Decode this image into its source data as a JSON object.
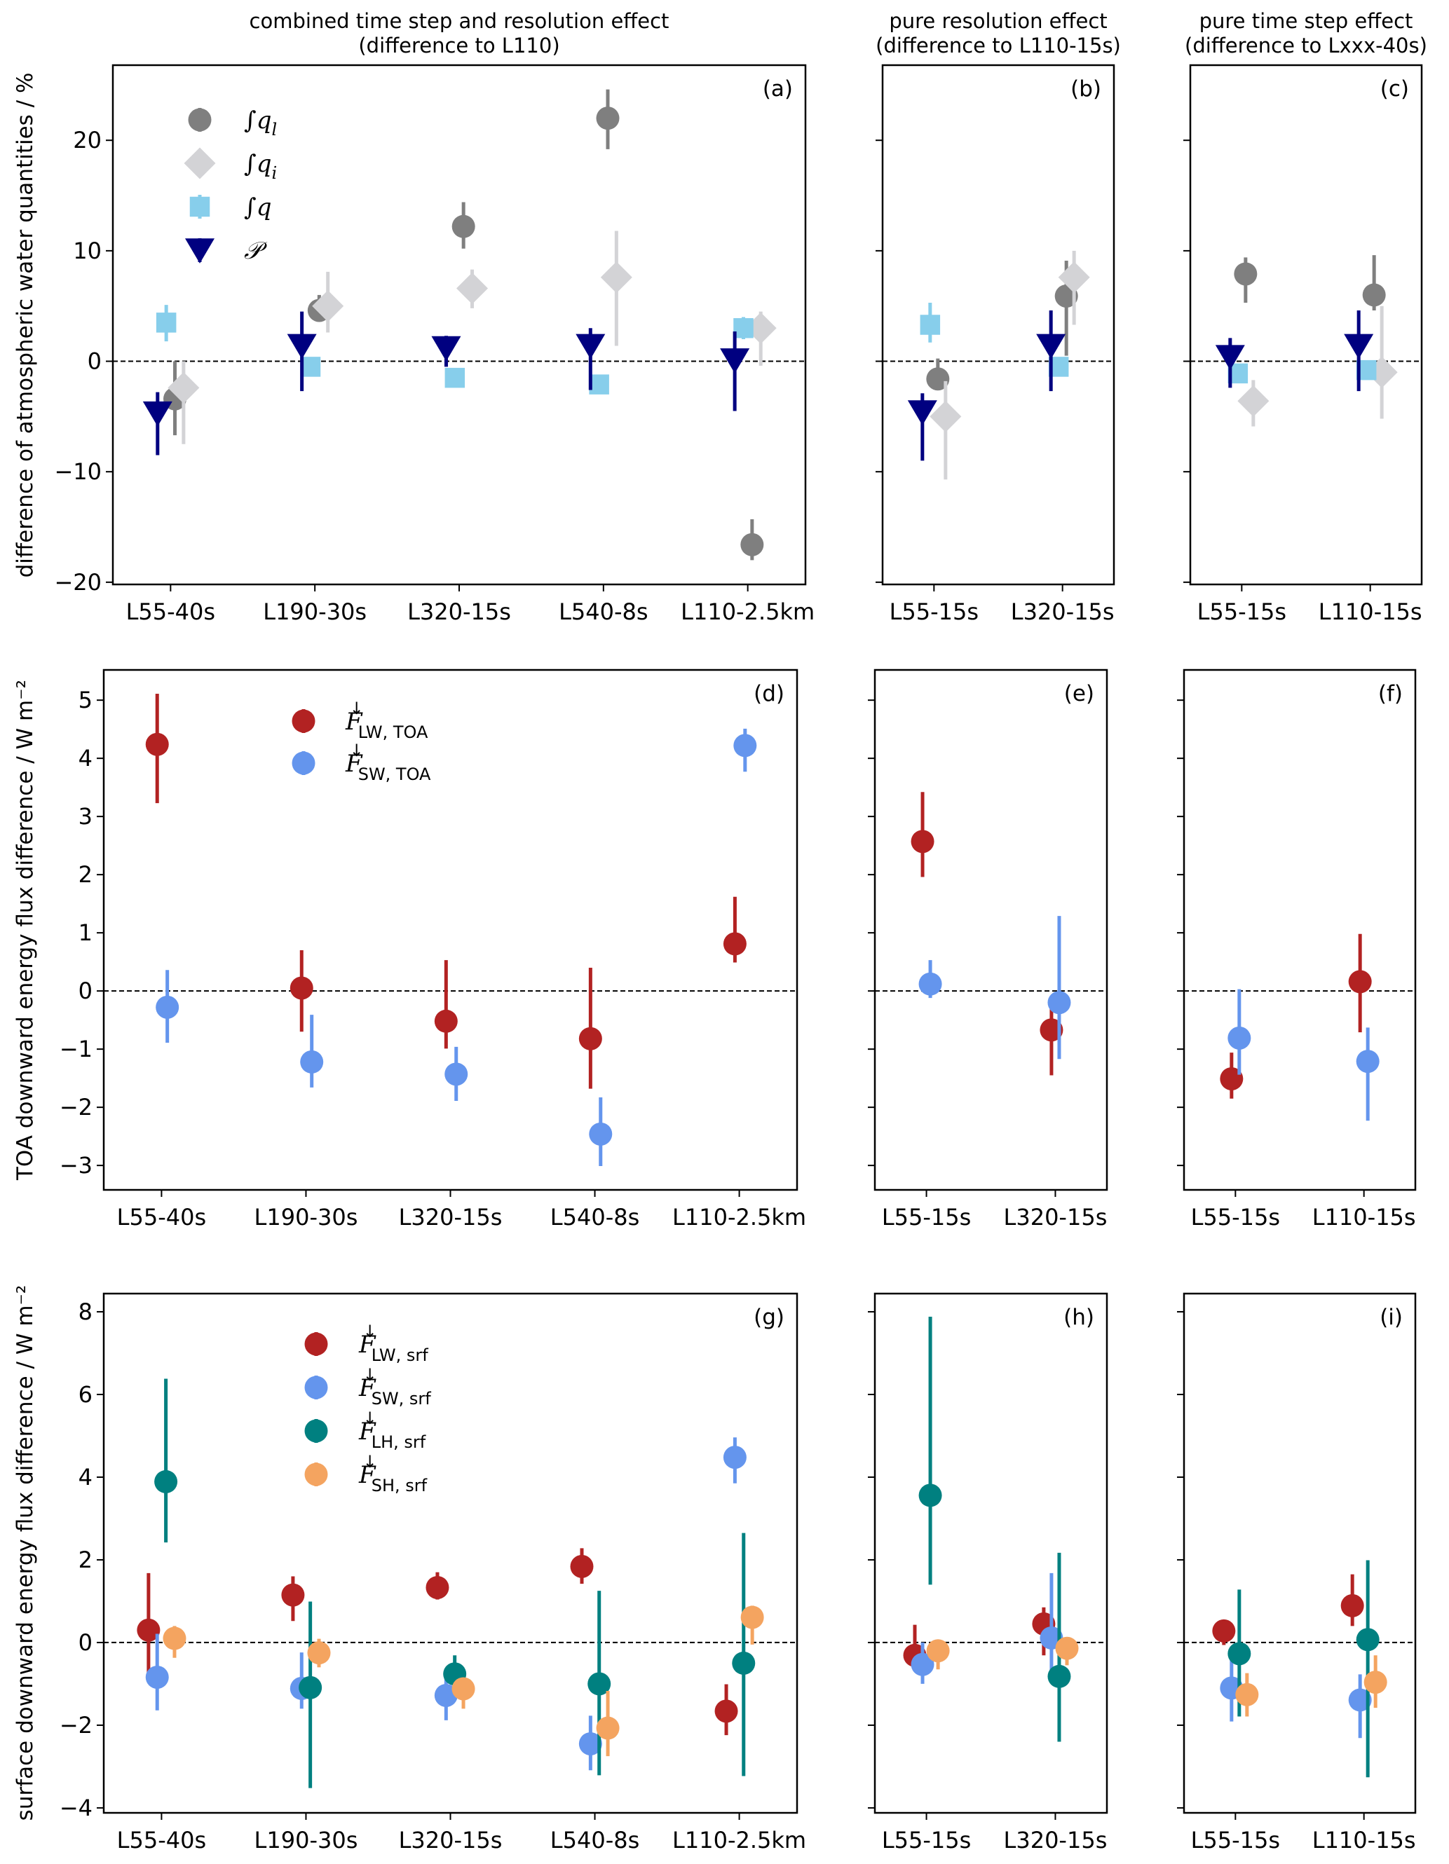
{
  "chart_data": [
    {
      "panel": "a",
      "type": "scatter",
      "panel_label": "(a)",
      "title": [
        "combined time step and resolution effect",
        "(difference to L110)"
      ],
      "ylabel": "difference of atmospheric water quantities / %",
      "categories": [
        "L55-40s",
        "L190-30s",
        "L320-15s",
        "L540-8s",
        "L110-2.5km"
      ],
      "ylim": [
        -20.2,
        26.8
      ],
      "yticks": [
        -20,
        -10,
        0,
        10,
        20
      ],
      "ytick_labels": [
        "−20",
        "−10",
        "0",
        "10",
        "20"
      ],
      "show_ytick_labels": true,
      "zero_line": true,
      "legend": "upper-left",
      "series": [
        {
          "name": "∫q_l",
          "label_main": "∫q",
          "label_sub": "l",
          "color": "#7f7f7f",
          "marker": "circle",
          "offset": 0.03,
          "values": [
            -3.4,
            4.6,
            12.2,
            22.0,
            -16.6
          ],
          "err_low": [
            -6.7,
            3.6,
            10.2,
            19.2,
            -18.0
          ],
          "err_high": [
            0.0,
            6.0,
            14.4,
            24.6,
            -14.3
          ]
        },
        {
          "name": "∫q_i",
          "label_main": "∫q",
          "label_sub": "i",
          "color": "#d3d3d6",
          "marker": "diamond",
          "offset": 0.09,
          "values": [
            -2.4,
            5.0,
            6.6,
            7.6,
            3.0
          ],
          "err_low": [
            -7.5,
            2.6,
            4.8,
            1.4,
            -0.4
          ],
          "err_high": [
            0.0,
            8.1,
            8.3,
            11.8,
            4.5
          ]
        },
        {
          "name": "∫q",
          "label_main": "∫q",
          "label_sub": "",
          "color": "#87ceeb",
          "marker": "square",
          "offset": -0.03,
          "values": [
            3.5,
            -0.5,
            -1.5,
            -2.1,
            3.0
          ],
          "err_low": [
            1.8,
            -0.9,
            -1.8,
            -2.4,
            2.0
          ],
          "err_high": [
            5.1,
            -0.1,
            -1.2,
            -1.8,
            4.0
          ]
        },
        {
          "name": "P",
          "label_main": "𝒫",
          "label_sub": "",
          "color": "#000080",
          "marker": "triangle-down",
          "offset": -0.09,
          "values": [
            -4.7,
            1.4,
            1.2,
            1.4,
            0.1
          ],
          "err_low": [
            -8.5,
            -2.7,
            -0.5,
            -2.6,
            -4.5
          ],
          "err_high": [
            -2.8,
            4.5,
            2.3,
            3.0,
            2.7
          ]
        }
      ]
    },
    {
      "panel": "b",
      "type": "scatter",
      "panel_label": "(b)",
      "title": [
        "pure resolution effect",
        "(difference to L110-15s)"
      ],
      "categories": [
        "L55-15s",
        "L320-15s"
      ],
      "ylim": [
        -20.2,
        26.8
      ],
      "yticks": [
        -20,
        -10,
        0,
        10,
        20
      ],
      "show_ytick_labels": false,
      "zero_line": true,
      "series": [
        {
          "name": "∫q_l",
          "color": "#7f7f7f",
          "marker": "circle",
          "offset": 0.03,
          "values": [
            -1.6,
            5.9
          ],
          "err_low": [
            -2.5,
            0.5
          ],
          "err_high": [
            0.25,
            9.1
          ]
        },
        {
          "name": "∫q_i",
          "color": "#d3d3d6",
          "marker": "diamond",
          "offset": 0.09,
          "values": [
            -5.0,
            7.6
          ],
          "err_low": [
            -10.7,
            3.3
          ],
          "err_high": [
            -1.8,
            10.0
          ]
        },
        {
          "name": "∫q",
          "color": "#87ceeb",
          "marker": "square",
          "offset": -0.03,
          "values": [
            3.3,
            -0.5
          ],
          "err_low": [
            1.7,
            -0.8
          ],
          "err_high": [
            5.3,
            -0.2
          ]
        },
        {
          "name": "P",
          "color": "#000080",
          "marker": "triangle-down",
          "offset": -0.09,
          "values": [
            -4.6,
            1.4
          ],
          "err_low": [
            -9.0,
            -2.7
          ],
          "err_high": [
            -2.9,
            4.6
          ]
        }
      ]
    },
    {
      "panel": "c",
      "type": "scatter",
      "panel_label": "(c)",
      "title": [
        "pure time step effect",
        "(difference to Lxxx-40s)"
      ],
      "categories": [
        "L55-15s",
        "L110-15s"
      ],
      "ylim": [
        -20.2,
        26.8
      ],
      "yticks": [
        -20,
        -10,
        0,
        10,
        20
      ],
      "show_ytick_labels": false,
      "zero_line": true,
      "series": [
        {
          "name": "∫q_l",
          "color": "#7f7f7f",
          "marker": "circle",
          "offset": 0.03,
          "values": [
            7.9,
            6.0
          ],
          "err_low": [
            5.3,
            4.6
          ],
          "err_high": [
            9.4,
            9.6
          ]
        },
        {
          "name": "∫q_i",
          "color": "#d3d3d6",
          "marker": "diamond",
          "offset": 0.09,
          "values": [
            -3.6,
            -1.0
          ],
          "err_low": [
            -5.9,
            -5.2
          ],
          "err_high": [
            -1.7,
            5.0
          ]
        },
        {
          "name": "∫q",
          "color": "#87ceeb",
          "marker": "square",
          "offset": -0.03,
          "values": [
            -1.1,
            -0.8
          ],
          "err_low": [
            -1.4,
            -1.1
          ],
          "err_high": [
            -0.8,
            -0.5
          ]
        },
        {
          "name": "P",
          "color": "#000080",
          "marker": "triangle-down",
          "offset": -0.09,
          "values": [
            0.4,
            1.4
          ],
          "err_low": [
            -2.4,
            -2.7
          ],
          "err_high": [
            2.1,
            4.6
          ]
        }
      ]
    },
    {
      "panel": "d",
      "type": "scatter",
      "panel_label": "(d)",
      "ylabel": "TOA downward energy flux difference / W m⁻²",
      "categories": [
        "L55-40s",
        "L190-30s",
        "L320-15s",
        "L540-8s",
        "L110-2.5km"
      ],
      "ylim": [
        -3.42,
        5.52
      ],
      "yticks": [
        -3,
        -2,
        -1,
        0,
        1,
        2,
        3,
        4,
        5
      ],
      "ytick_labels": [
        "−3",
        "−2",
        "−1",
        "0",
        "1",
        "2",
        "3",
        "4",
        "5"
      ],
      "show_ytick_labels": true,
      "zero_line": true,
      "legend": "upper-left",
      "series": [
        {
          "name": "F_LW,TOA",
          "label_main": "F",
          "label_sub": "LW, TOA",
          "color": "#b22222",
          "marker": "circle",
          "offset": -0.03,
          "values": [
            4.24,
            0.05,
            -0.52,
            -0.82,
            0.81
          ],
          "err_low": [
            3.23,
            -0.7,
            -0.99,
            -1.68,
            0.49
          ],
          "err_high": [
            5.11,
            0.7,
            0.53,
            0.4,
            1.62
          ]
        },
        {
          "name": "F_SW,TOA",
          "label_main": "F",
          "label_sub": "SW, TOA",
          "color": "#6495ed",
          "marker": "circle",
          "offset": 0.04,
          "values": [
            -0.28,
            -1.22,
            -1.43,
            -2.46,
            4.22
          ],
          "err_low": [
            -0.89,
            -1.66,
            -1.89,
            -3.01,
            3.77
          ],
          "err_high": [
            0.36,
            -0.41,
            -0.96,
            -1.83,
            4.51
          ]
        }
      ]
    },
    {
      "panel": "e",
      "type": "scatter",
      "panel_label": "(e)",
      "categories": [
        "L55-15s",
        "L320-15s"
      ],
      "ylim": [
        -3.42,
        5.52
      ],
      "yticks": [
        -3,
        -2,
        -1,
        0,
        1,
        2,
        3,
        4,
        5
      ],
      "show_ytick_labels": false,
      "zero_line": true,
      "series": [
        {
          "name": "F_LW,TOA",
          "color": "#b22222",
          "marker": "circle",
          "offset": -0.03,
          "values": [
            2.57,
            -0.67
          ],
          "err_low": [
            1.96,
            -1.45
          ],
          "err_high": [
            3.42,
            -0.24
          ]
        },
        {
          "name": "F_SW,TOA",
          "color": "#6495ed",
          "marker": "circle",
          "offset": 0.03,
          "values": [
            0.12,
            -0.2
          ],
          "err_low": [
            -0.12,
            -1.17
          ],
          "err_high": [
            0.53,
            1.29
          ]
        }
      ]
    },
    {
      "panel": "f",
      "type": "scatter",
      "panel_label": "(f)",
      "categories": [
        "L55-15s",
        "L110-15s"
      ],
      "ylim": [
        -3.42,
        5.52
      ],
      "yticks": [
        -3,
        -2,
        -1,
        0,
        1,
        2,
        3,
        4,
        5
      ],
      "show_ytick_labels": false,
      "zero_line": true,
      "series": [
        {
          "name": "F_LW,TOA",
          "color": "#b22222",
          "marker": "circle",
          "offset": -0.03,
          "values": [
            -1.51,
            0.16
          ],
          "err_low": [
            -1.85,
            -0.71
          ],
          "err_high": [
            -1.06,
            0.98
          ]
        },
        {
          "name": "F_SW,TOA",
          "color": "#6495ed",
          "marker": "circle",
          "offset": 0.03,
          "values": [
            -0.81,
            -1.21
          ],
          "err_low": [
            -1.44,
            -2.23
          ],
          "err_high": [
            0.03,
            -0.63
          ]
        }
      ]
    },
    {
      "panel": "g",
      "type": "scatter",
      "panel_label": "(g)",
      "ylabel": "surface downward energy flux difference / W m⁻²",
      "categories": [
        "L55-40s",
        "L190-30s",
        "L320-15s",
        "L540-8s",
        "L110-2.5km"
      ],
      "ylim": [
        -4.12,
        8.44
      ],
      "yticks": [
        -4,
        -2,
        0,
        2,
        4,
        6,
        8
      ],
      "ytick_labels": [
        "−4",
        "−2",
        "0",
        "2",
        "4",
        "6",
        "8"
      ],
      "show_ytick_labels": true,
      "zero_line": true,
      "legend": "upper-left",
      "series": [
        {
          "name": "F_LW,srf",
          "label_main": "F",
          "label_sub": "LW, srf",
          "color": "#b22222",
          "marker": "circle",
          "offset": -0.09,
          "values": [
            0.3,
            1.15,
            1.33,
            1.84,
            -1.66
          ],
          "err_low": [
            -0.81,
            0.52,
            1.04,
            1.42,
            -2.24
          ],
          "err_high": [
            1.68,
            1.6,
            1.7,
            2.28,
            -1.01
          ]
        },
        {
          "name": "F_SW,srf",
          "label_main": "F",
          "label_sub": "SW, srf",
          "color": "#6495ed",
          "marker": "circle",
          "offset": -0.03,
          "values": [
            -0.84,
            -1.11,
            -1.28,
            -2.45,
            4.48
          ],
          "err_low": [
            -1.64,
            -1.6,
            -1.88,
            -3.09,
            3.85
          ],
          "err_high": [
            0.21,
            -0.24,
            -0.65,
            -1.77,
            4.96
          ]
        },
        {
          "name": "F_LH,srf",
          "label_main": "F",
          "label_sub": "LH, srf",
          "color": "#008080",
          "marker": "circle",
          "offset": 0.03,
          "values": [
            3.89,
            -1.09,
            -0.76,
            -1.0,
            -0.5
          ],
          "err_low": [
            2.42,
            -3.52,
            -1.22,
            -3.21,
            -3.23
          ],
          "err_high": [
            6.38,
            0.99,
            -0.31,
            1.25,
            2.65
          ]
        },
        {
          "name": "F_SH,srf",
          "label_main": "F",
          "label_sub": "SH, srf",
          "color": "#f4a460",
          "marker": "circle",
          "offset": 0.09,
          "values": [
            0.1,
            -0.25,
            -1.12,
            -2.07,
            0.61
          ],
          "err_low": [
            -0.37,
            -0.6,
            -1.6,
            -2.75,
            -0.05
          ],
          "err_high": [
            0.4,
            0.09,
            -0.86,
            -1.17,
            0.89
          ]
        }
      ]
    },
    {
      "panel": "h",
      "type": "scatter",
      "panel_label": "(h)",
      "categories": [
        "L55-15s",
        "L320-15s"
      ],
      "ylim": [
        -4.12,
        8.44
      ],
      "yticks": [
        -4,
        -2,
        0,
        2,
        4,
        6,
        8
      ],
      "show_ytick_labels": false,
      "zero_line": true,
      "series": [
        {
          "name": "F_LW,srf",
          "color": "#b22222",
          "marker": "circle",
          "offset": -0.09,
          "values": [
            -0.31,
            0.45
          ],
          "err_low": [
            -0.67,
            -0.31
          ],
          "err_high": [
            0.43,
            0.85
          ]
        },
        {
          "name": "F_SW,srf",
          "color": "#6495ed",
          "marker": "circle",
          "offset": -0.03,
          "values": [
            -0.53,
            0.11
          ],
          "err_low": [
            -1.0,
            -0.86
          ],
          "err_high": [
            0.0,
            1.68
          ]
        },
        {
          "name": "F_LH,srf",
          "color": "#008080",
          "marker": "circle",
          "offset": 0.03,
          "values": [
            3.56,
            -0.82
          ],
          "err_low": [
            1.4,
            -2.4
          ],
          "err_high": [
            7.88,
            2.17
          ]
        },
        {
          "name": "F_SH,srf",
          "color": "#f4a460",
          "marker": "circle",
          "offset": 0.09,
          "values": [
            -0.2,
            -0.14
          ],
          "err_low": [
            -0.65,
            -0.55
          ],
          "err_high": [
            0.02,
            0.07
          ]
        }
      ]
    },
    {
      "panel": "i",
      "type": "scatter",
      "panel_label": "(i)",
      "categories": [
        "L55-15s",
        "L110-15s"
      ],
      "ylim": [
        -4.12,
        8.44
      ],
      "yticks": [
        -4,
        -2,
        0,
        2,
        4,
        6,
        8
      ],
      "show_ytick_labels": false,
      "zero_line": true,
      "series": [
        {
          "name": "F_LW,srf",
          "color": "#b22222",
          "marker": "circle",
          "offset": -0.09,
          "values": [
            0.28,
            0.89
          ],
          "err_low": [
            -0.06,
            0.4
          ],
          "err_high": [
            0.54,
            1.65
          ]
        },
        {
          "name": "F_SW,srf",
          "color": "#6495ed",
          "marker": "circle",
          "offset": -0.03,
          "values": [
            -1.1,
            -1.39
          ],
          "err_low": [
            -1.91,
            -2.31
          ],
          "err_high": [
            -0.1,
            -0.77
          ]
        },
        {
          "name": "F_LH,srf",
          "color": "#008080",
          "marker": "circle",
          "offset": 0.03,
          "values": [
            -0.27,
            0.07
          ],
          "err_low": [
            -1.79,
            -3.26
          ],
          "err_high": [
            1.28,
            1.99
          ]
        },
        {
          "name": "F_SH,srf",
          "color": "#f4a460",
          "marker": "circle",
          "offset": 0.09,
          "values": [
            -1.26,
            -0.96
          ],
          "err_low": [
            -1.79,
            -1.58
          ],
          "err_high": [
            -0.74,
            -0.31
          ]
        }
      ]
    }
  ]
}
